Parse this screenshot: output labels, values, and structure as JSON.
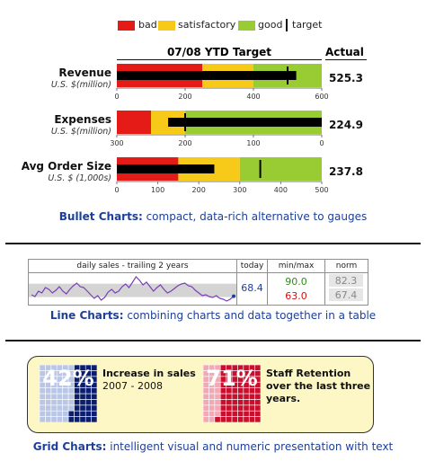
{
  "legend": {
    "items": [
      {
        "label": "bad",
        "color": "#e41b17"
      },
      {
        "label": "satisfactory",
        "color": "#f7c918"
      },
      {
        "label": "good",
        "color": "#99cc33"
      },
      {
        "label": "target",
        "color": "#111111"
      }
    ]
  },
  "bullet": {
    "header": "07/08 YTD Target",
    "actual_header": "Actual",
    "caption_bold": "Bullet Charts:",
    "caption_rest": " compact, data-rich alternative to gauges"
  },
  "line": {
    "col_label": "daily sales - trailing 2 years",
    "today_label": "today",
    "minmax_label": "min/max",
    "norm_label": "norm",
    "today_value": "68.4",
    "max_value": "90.0",
    "min_value": "63.0",
    "norm_high": "82.3",
    "norm_low": "67.4",
    "caption_bold": "Line Charts:",
    "caption_rest": " combining charts and data together in a table"
  },
  "grid": {
    "items": [
      {
        "pct_label": "42%",
        "line1": "Increase in sales",
        "line2": "2007 - 2008",
        "line3": ""
      },
      {
        "pct_label": "71%",
        "line1": "Staff Retention",
        "line2": "over the last three",
        "line3": "years."
      }
    ],
    "caption_bold": "Grid Charts:",
    "caption_rest": " intelligent visual and numeric presentation with text"
  },
  "chart_data": [
    {
      "type": "bar",
      "subtype": "bullet",
      "title": "07/08 YTD Target",
      "rows": [
        {
          "name": "Revenue",
          "sub": "U.S. $(million)",
          "min": 0,
          "max": 600,
          "reverse": false,
          "ticks": [
            0,
            200,
            400,
            600
          ],
          "bands": [
            {
              "from": 0,
              "to": 250,
              "color": "#e41b17"
            },
            {
              "from": 250,
              "to": 400,
              "color": "#f7c918"
            },
            {
              "from": 400,
              "to": 600,
              "color": "#99cc33"
            }
          ],
          "value": 525.3,
          "target": 500,
          "actual_label": "525.3"
        },
        {
          "name": "Expenses",
          "sub": "U.S. $(million)",
          "min": 0,
          "max": 300,
          "reverse": true,
          "ticks": [
            300,
            200,
            100,
            0
          ],
          "bands": [
            {
              "from": 300,
              "to": 250,
              "color": "#e41b17"
            },
            {
              "from": 250,
              "to": 200,
              "color": "#f7c918"
            },
            {
              "from": 200,
              "to": 0,
              "color": "#99cc33"
            }
          ],
          "value": 224.9,
          "target": 200,
          "actual_label": "224.9"
        },
        {
          "name": "Avg Order Size",
          "sub": "U.S. $ (1,000s)",
          "min": 0,
          "max": 500,
          "reverse": false,
          "ticks": [
            0,
            100,
            200,
            300,
            400,
            500
          ],
          "bands": [
            {
              "from": 0,
              "to": 150,
              "color": "#e41b17"
            },
            {
              "from": 150,
              "to": 300,
              "color": "#f7c918"
            },
            {
              "from": 300,
              "to": 500,
              "color": "#99cc33"
            }
          ],
          "value": 237.8,
          "target": 350,
          "actual_label": "237.8"
        }
      ]
    },
    {
      "type": "line",
      "title": "daily sales - trailing 2 years",
      "series": [
        {
          "values": [
            70,
            68,
            74,
            72,
            78,
            76,
            72,
            75,
            79,
            74,
            71,
            76,
            80,
            83,
            79,
            78,
            74,
            70,
            66,
            69,
            64,
            67,
            73,
            76,
            72,
            74,
            79,
            82,
            78,
            84,
            90,
            86,
            81,
            84,
            79,
            74,
            78,
            81,
            76,
            72,
            74,
            77,
            80,
            82,
            83,
            80,
            79,
            75,
            72,
            69,
            70,
            68,
            67,
            69,
            66,
            65,
            63,
            65,
            68.4
          ]
        }
      ],
      "ylim": [
        63,
        90
      ],
      "norm_band": [
        67.4,
        82.3
      ]
    },
    {
      "type": "grid",
      "cells": 100,
      "items": [
        {
          "value": 42
        },
        {
          "value": 71
        }
      ]
    }
  ]
}
